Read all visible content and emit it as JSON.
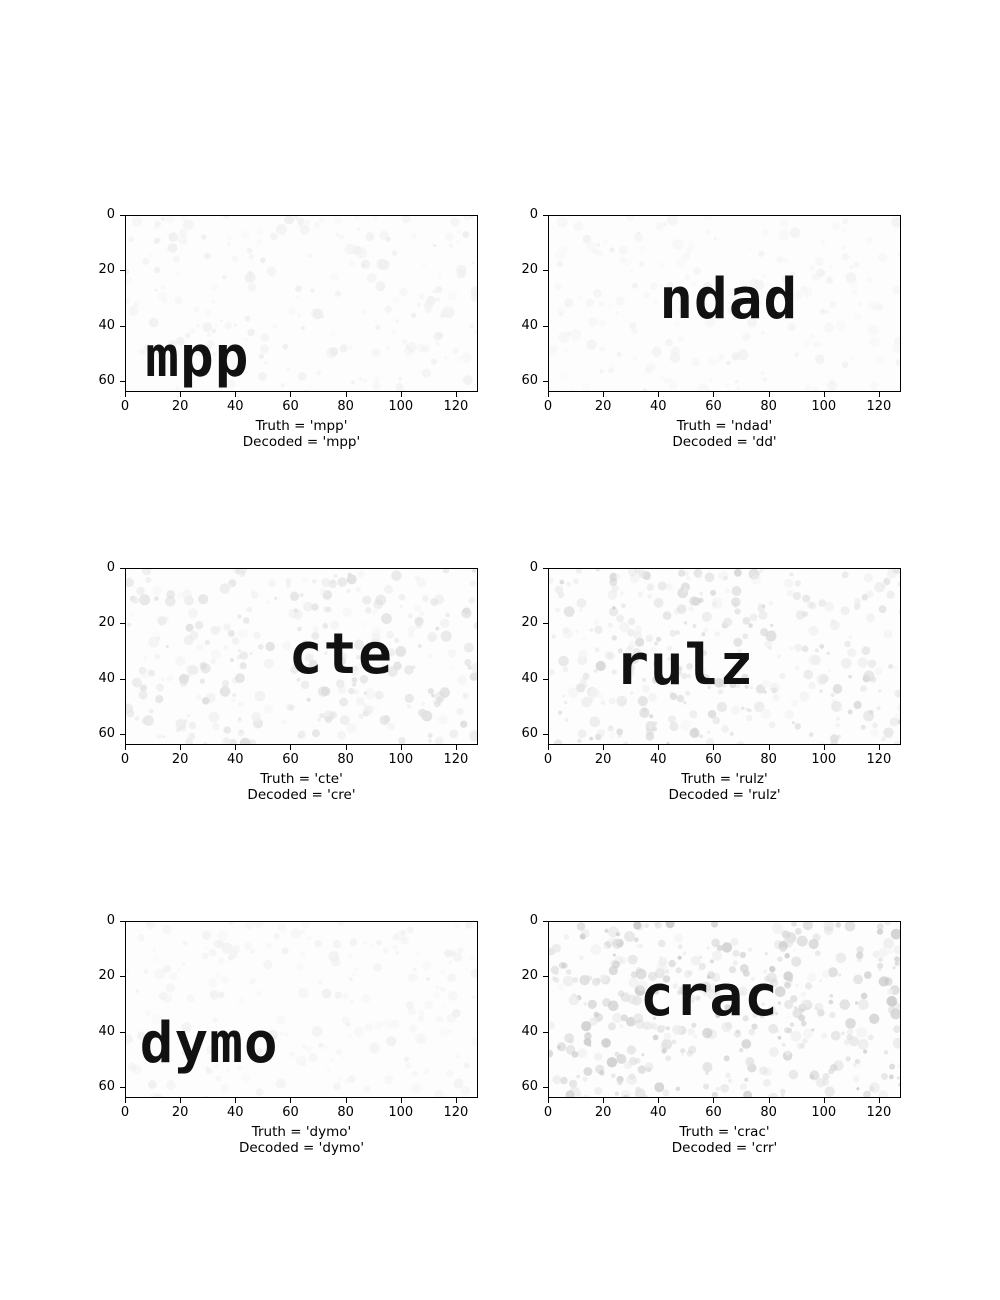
{
  "chart_data": [
    {
      "type": "image",
      "truth_label": "Truth = 'mpp'",
      "decoded_label": "Decoded = 'mpp'",
      "word": "mpp",
      "word_position": {
        "x": 7,
        "y": 44
      },
      "noise_level": 0.25,
      "xlim": [
        0,
        128
      ],
      "ylim": [
        0,
        64
      ],
      "xticks": [
        "0",
        "20",
        "40",
        "60",
        "80",
        "100",
        "120"
      ],
      "yticks": [
        "0",
        "20",
        "40",
        "60"
      ]
    },
    {
      "type": "image",
      "truth_label": "Truth = 'ndad'",
      "decoded_label": "Decoded = 'dd'",
      "word": "ndad",
      "word_position": {
        "x": 40,
        "y": 23
      },
      "noise_level": 0.18,
      "xlim": [
        0,
        128
      ],
      "ylim": [
        0,
        64
      ],
      "xticks": [
        "0",
        "20",
        "40",
        "60",
        "80",
        "100",
        "120"
      ],
      "yticks": [
        "0",
        "20",
        "40",
        "60"
      ]
    },
    {
      "type": "image",
      "truth_label": "Truth = 'cte'",
      "decoded_label": "Decoded = 'cre'",
      "word": "cte",
      "word_position": {
        "x": 59,
        "y": 24
      },
      "noise_level": 0.55,
      "xlim": [
        0,
        128
      ],
      "ylim": [
        0,
        64
      ],
      "xticks": [
        "0",
        "20",
        "40",
        "60",
        "80",
        "100",
        "120"
      ],
      "yticks": [
        "0",
        "20",
        "40",
        "60"
      ]
    },
    {
      "type": "image",
      "truth_label": "Truth = 'rulz'",
      "decoded_label": "Decoded = 'rulz'",
      "word": "rulz",
      "word_position": {
        "x": 24,
        "y": 28
      },
      "noise_level": 0.65,
      "xlim": [
        0,
        128
      ],
      "ylim": [
        0,
        64
      ],
      "xticks": [
        "0",
        "20",
        "40",
        "60",
        "80",
        "100",
        "120"
      ],
      "yticks": [
        "0",
        "20",
        "40",
        "60"
      ]
    },
    {
      "type": "image",
      "truth_label": "Truth = 'dymo'",
      "decoded_label": "Decoded = 'dymo'",
      "word": "dymo",
      "word_position": {
        "x": 5,
        "y": 37
      },
      "noise_level": 0.2,
      "xlim": [
        0,
        128
      ],
      "ylim": [
        0,
        64
      ],
      "xticks": [
        "0",
        "20",
        "40",
        "60",
        "80",
        "100",
        "120"
      ],
      "yticks": [
        "0",
        "20",
        "40",
        "60"
      ]
    },
    {
      "type": "image",
      "truth_label": "Truth = 'crac'",
      "decoded_label": "Decoded = 'crr'",
      "word": "crac",
      "word_position": {
        "x": 33,
        "y": 20
      },
      "noise_level": 0.85,
      "xlim": [
        0,
        128
      ],
      "ylim": [
        0,
        64
      ],
      "xticks": [
        "0",
        "20",
        "40",
        "60",
        "80",
        "100",
        "120"
      ],
      "yticks": [
        "0",
        "20",
        "40",
        "60"
      ]
    }
  ]
}
